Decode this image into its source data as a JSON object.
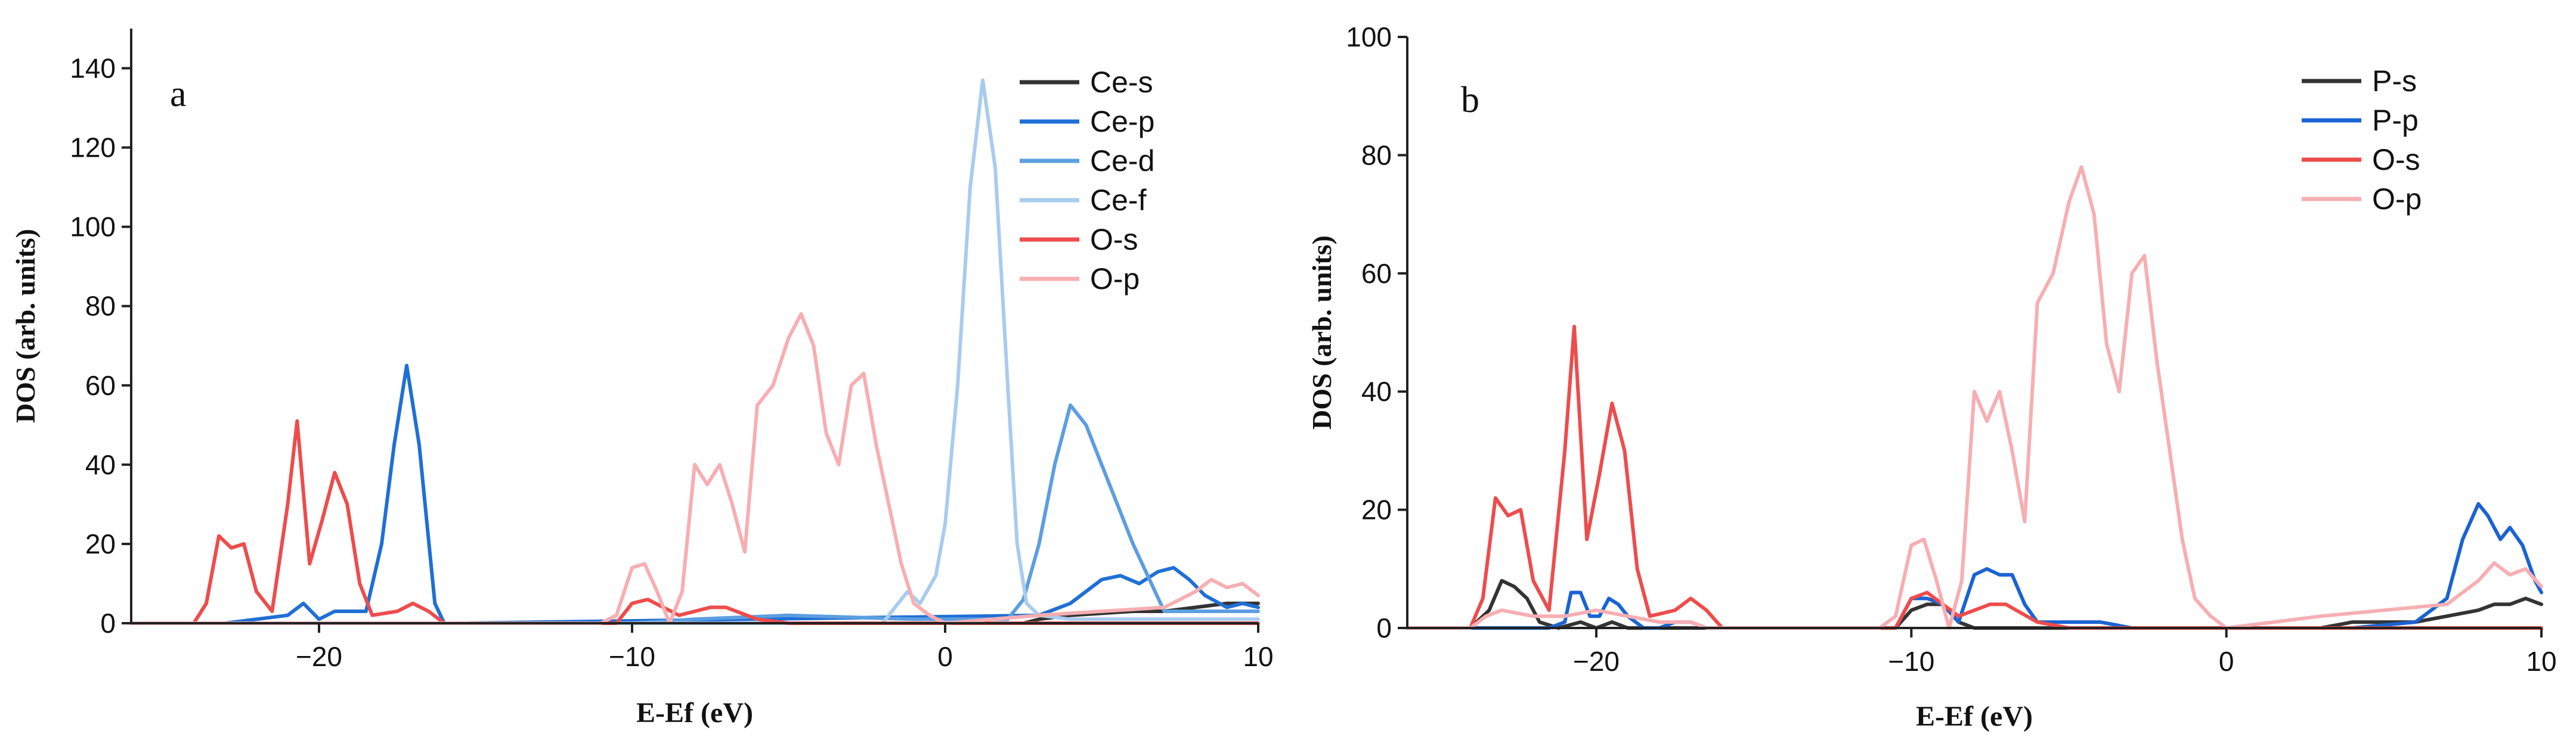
{
  "chart_data": [
    {
      "type": "line",
      "panel_label": "a",
      "xlabel": "E-Ef (eV)",
      "ylabel": "DOS (arb. units)",
      "xlim": [
        -26,
        10
      ],
      "ylim": [
        0,
        150
      ],
      "xticks": [
        -20,
        -10,
        0,
        10
      ],
      "xtick_labels": [
        "−20",
        "−10",
        "0",
        "10"
      ],
      "yticks": [
        0,
        20,
        40,
        60,
        80,
        100,
        120,
        140
      ],
      "ytick_labels": [
        "0",
        "20",
        "40",
        "60",
        "80",
        "100",
        "120",
        "140"
      ],
      "legend_position": "top-right",
      "series": [
        {
          "name": "Ce-s",
          "color": "#333333",
          "x": [
            -26,
            2.5,
            3,
            4,
            5,
            6,
            7,
            8,
            9,
            10
          ],
          "y": [
            0,
            0,
            1,
            2,
            2.5,
            3,
            3,
            4,
            5,
            5
          ]
        },
        {
          "name": "Ce-p",
          "color": "#1f6fd6",
          "x": [
            -26,
            -23,
            -21,
            -20.5,
            -20,
            -19.5,
            -18.5,
            -18,
            -17.6,
            -17.2,
            -16.8,
            -16.3,
            -16,
            -15.5,
            3,
            4,
            5,
            5.6,
            6.2,
            6.8,
            7.3,
            7.8,
            8.3,
            9,
            9.5,
            10
          ],
          "y": [
            0,
            0,
            2,
            5,
            1,
            3,
            3,
            20,
            45,
            65,
            45,
            5,
            0,
            0,
            2,
            5,
            11,
            12,
            10,
            13,
            14,
            11,
            7,
            4,
            5,
            4
          ]
        },
        {
          "name": "Ce-d",
          "color": "#5c9ee0",
          "x": [
            -26,
            -10,
            -8,
            -5,
            -1,
            0,
            2,
            2.5,
            3,
            3.5,
            4,
            4.5,
            5,
            5.5,
            6,
            7,
            8,
            9,
            10
          ],
          "y": [
            0,
            0,
            1,
            2,
            1,
            1,
            1,
            6,
            20,
            40,
            55,
            50,
            40,
            30,
            20,
            3,
            3,
            3,
            3
          ]
        },
        {
          "name": "Ce-f",
          "color": "#a8ccee",
          "x": [
            -26,
            -2,
            -1.2,
            -0.8,
            -0.3,
            0,
            0.4,
            0.8,
            1.2,
            1.6,
            2,
            2.3,
            2.6,
            3,
            4,
            6,
            8,
            10
          ],
          "y": [
            0,
            0,
            8,
            5,
            12,
            25,
            60,
            110,
            137,
            115,
            60,
            20,
            5,
            2,
            1,
            1,
            1,
            1
          ]
        },
        {
          "name": "O-s",
          "color": "#ee4c4c",
          "x": [
            -26,
            -24,
            -23.6,
            -23.2,
            -22.8,
            -22.4,
            -22,
            -21.5,
            -21,
            -20.7,
            -20.3,
            -19.9,
            -19.5,
            -19.1,
            -18.7,
            -18.3,
            -17.5,
            -17,
            -16.5,
            -16,
            -10.5,
            -10,
            -9.5,
            -9,
            -8.5,
            -7.5,
            -7,
            -6,
            -5,
            0,
            10
          ],
          "y": [
            0,
            0,
            5,
            22,
            19,
            20,
            8,
            3,
            30,
            51,
            15,
            26,
            38,
            30,
            10,
            2,
            3,
            5,
            3,
            0,
            0,
            5,
            6,
            4,
            2,
            4,
            4,
            1,
            0,
            0,
            0
          ]
        },
        {
          "name": "O-p",
          "color": "#f7aeb2",
          "x": [
            -26,
            -11,
            -10.5,
            -10,
            -9.6,
            -9.2,
            -8.8,
            -8.4,
            -8,
            -7.6,
            -7.2,
            -6.8,
            -6.4,
            -6,
            -5.5,
            -5,
            -4.6,
            -4.2,
            -3.8,
            -3.4,
            -3,
            -2.6,
            -2.2,
            -1.8,
            -1.4,
            -1,
            -0.5,
            0,
            3,
            5,
            7,
            8,
            8.5,
            9,
            9.5,
            10
          ],
          "y": [
            0,
            0,
            2,
            14,
            15,
            8,
            0,
            8,
            40,
            35,
            40,
            30,
            18,
            55,
            60,
            72,
            78,
            70,
            48,
            40,
            60,
            63,
            45,
            30,
            15,
            5,
            2,
            0,
            2,
            3,
            4,
            8,
            11,
            9,
            10,
            7
          ]
        }
      ]
    },
    {
      "type": "line",
      "panel_label": "b",
      "xlabel": "E-Ef (eV)",
      "ylabel": "DOS (arb. units)",
      "xlim": [
        -26,
        10
      ],
      "ylim": [
        0,
        100
      ],
      "xticks": [
        -20,
        -10,
        0,
        10
      ],
      "xtick_labels": [
        "−20",
        "−10",
        "0",
        "10"
      ],
      "yticks": [
        0,
        20,
        40,
        60,
        80,
        100
      ],
      "ytick_labels": [
        "0",
        "20",
        "40",
        "60",
        "80",
        "100"
      ],
      "legend_position": "top-right",
      "series": [
        {
          "name": "P-s",
          "color": "#333333",
          "x": [
            -26,
            -24,
            -23.4,
            -23,
            -22.6,
            -22.2,
            -21.8,
            -21.2,
            -20.5,
            -20,
            -19.5,
            -19,
            -18,
            -17,
            -10.5,
            -10,
            -9.5,
            -9,
            -8.5,
            -8,
            -7,
            -6,
            -5,
            3,
            4,
            5,
            6,
            7,
            8,
            8.5,
            9,
            9.5,
            10
          ],
          "y": [
            0,
            0,
            3,
            8,
            7,
            5,
            1,
            0,
            1,
            0,
            1,
            0,
            0,
            0,
            0,
            3,
            4,
            4,
            1,
            0,
            0,
            0,
            0,
            0,
            1,
            1,
            1,
            2,
            3,
            4,
            4,
            5,
            4
          ]
        },
        {
          "name": "P-p",
          "color": "#1a63d2",
          "x": [
            -26,
            -23,
            -22.5,
            -22,
            -21.5,
            -21,
            -20.8,
            -20.5,
            -20.2,
            -19.9,
            -19.6,
            -19.3,
            -19,
            -18.5,
            -18,
            -17.5,
            -17,
            -16.5,
            -10.5,
            -10,
            -9.5,
            -9,
            -8.5,
            -8,
            -7.6,
            -7.2,
            -6.8,
            -6.4,
            -6,
            -5,
            -4,
            -3,
            -2,
            4,
            6,
            7,
            7.5,
            8,
            8.3,
            8.7,
            9,
            9.4,
            9.8,
            10
          ],
          "y": [
            0,
            0,
            0,
            0,
            0,
            1,
            6,
            6,
            2,
            2,
            5,
            4,
            2,
            0,
            0,
            1,
            1,
            0,
            0,
            5,
            5,
            4,
            1,
            9,
            10,
            9,
            9,
            4,
            1,
            1,
            1,
            0,
            0,
            0,
            1,
            5,
            15,
            21,
            19,
            15,
            17,
            14,
            8,
            6
          ]
        },
        {
          "name": "O-s",
          "color": "#ee4c4c",
          "x": [
            -26,
            -24,
            -23.6,
            -23.2,
            -22.8,
            -22.4,
            -22,
            -21.5,
            -21,
            -20.7,
            -20.3,
            -19.9,
            -19.5,
            -19.1,
            -18.7,
            -18.3,
            -17.5,
            -17,
            -16.5,
            -16,
            -10.5,
            -10,
            -9.5,
            -9,
            -8.5,
            -7.5,
            -7,
            -6,
            -5,
            0,
            10
          ],
          "y": [
            0,
            0,
            5,
            22,
            19,
            20,
            8,
            3,
            30,
            51,
            15,
            26,
            38,
            30,
            10,
            2,
            3,
            5,
            3,
            0,
            0,
            5,
            6,
            4,
            2,
            4,
            4,
            1,
            0,
            0,
            0
          ]
        },
        {
          "name": "O-p",
          "color": "#f7aeb2",
          "x": [
            -26,
            -24,
            -23.5,
            -23,
            -22,
            -21,
            -20,
            -19,
            -18,
            -17,
            -16.5,
            -16,
            -11,
            -10.5,
            -10,
            -9.6,
            -9.2,
            -8.8,
            -8.4,
            -8,
            -7.6,
            -7.2,
            -6.8,
            -6.4,
            -6,
            -5.5,
            -5,
            -4.6,
            -4.2,
            -3.8,
            -3.4,
            -3,
            -2.6,
            -2.2,
            -1.8,
            -1.4,
            -1,
            -0.5,
            0,
            3,
            5,
            7,
            8,
            8.5,
            9,
            9.5,
            10
          ],
          "y": [
            0,
            0,
            2,
            3,
            2,
            2,
            3,
            2,
            1,
            1,
            0,
            0,
            0,
            2,
            14,
            15,
            8,
            0,
            8,
            40,
            35,
            40,
            30,
            18,
            55,
            60,
            72,
            78,
            70,
            48,
            40,
            60,
            63,
            45,
            30,
            15,
            5,
            2,
            0,
            2,
            3,
            4,
            8,
            11,
            9,
            10,
            7
          ]
        }
      ]
    }
  ]
}
